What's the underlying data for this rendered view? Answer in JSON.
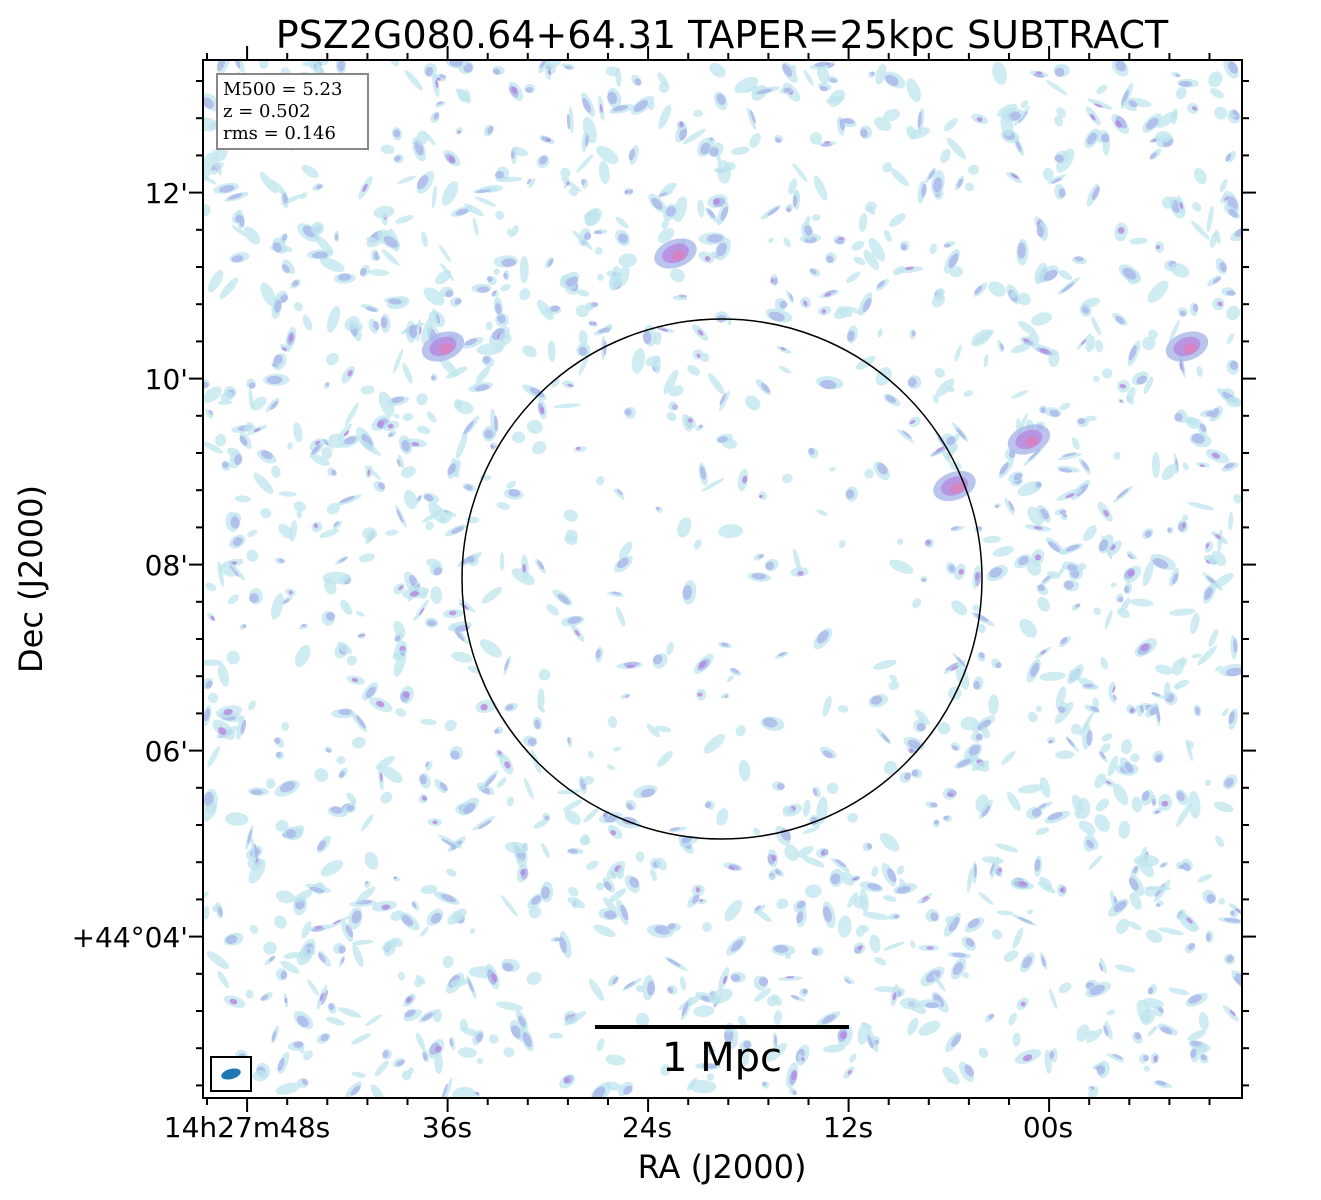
{
  "chart_data": {
    "type": "heatmap",
    "title": "PSZ2G080.64+64.31 TAPER=25kpc SUBTRACT",
    "xlabel": "RA (J2000)",
    "ylabel": "Dec (J2000)",
    "x_ticks": [
      "14h27m48s",
      "36s",
      "24s",
      "12s",
      "00s"
    ],
    "y_ticks": [
      "12'",
      "10'",
      "08'",
      "06'",
      "+44°04'"
    ],
    "info_box": {
      "m500": "M500 = 5.23",
      "z": "z = 0.502",
      "rms": "rms = 0.146"
    },
    "scale_bar_label": "1 Mpc",
    "grid": false,
    "colors": {
      "low": "#bfe6ee",
      "mid": "#a9b6ea",
      "high": "#b887e0",
      "peak": "#d97fb8",
      "beam": "#1f77b4"
    },
    "bright_sources": [
      {
        "ra_offset_arcmin": 0.5,
        "dec_offset_arcmin": 3.5
      },
      {
        "ra_offset_arcmin": -2.5,
        "dec_offset_arcmin": 1.0
      },
      {
        "ra_offset_arcmin": -5.0,
        "dec_offset_arcmin": 2.5
      },
      {
        "ra_offset_arcmin": 3.0,
        "dec_offset_arcmin": 2.5
      },
      {
        "ra_offset_arcmin": -3.3,
        "dec_offset_arcmin": 1.5
      }
    ]
  }
}
